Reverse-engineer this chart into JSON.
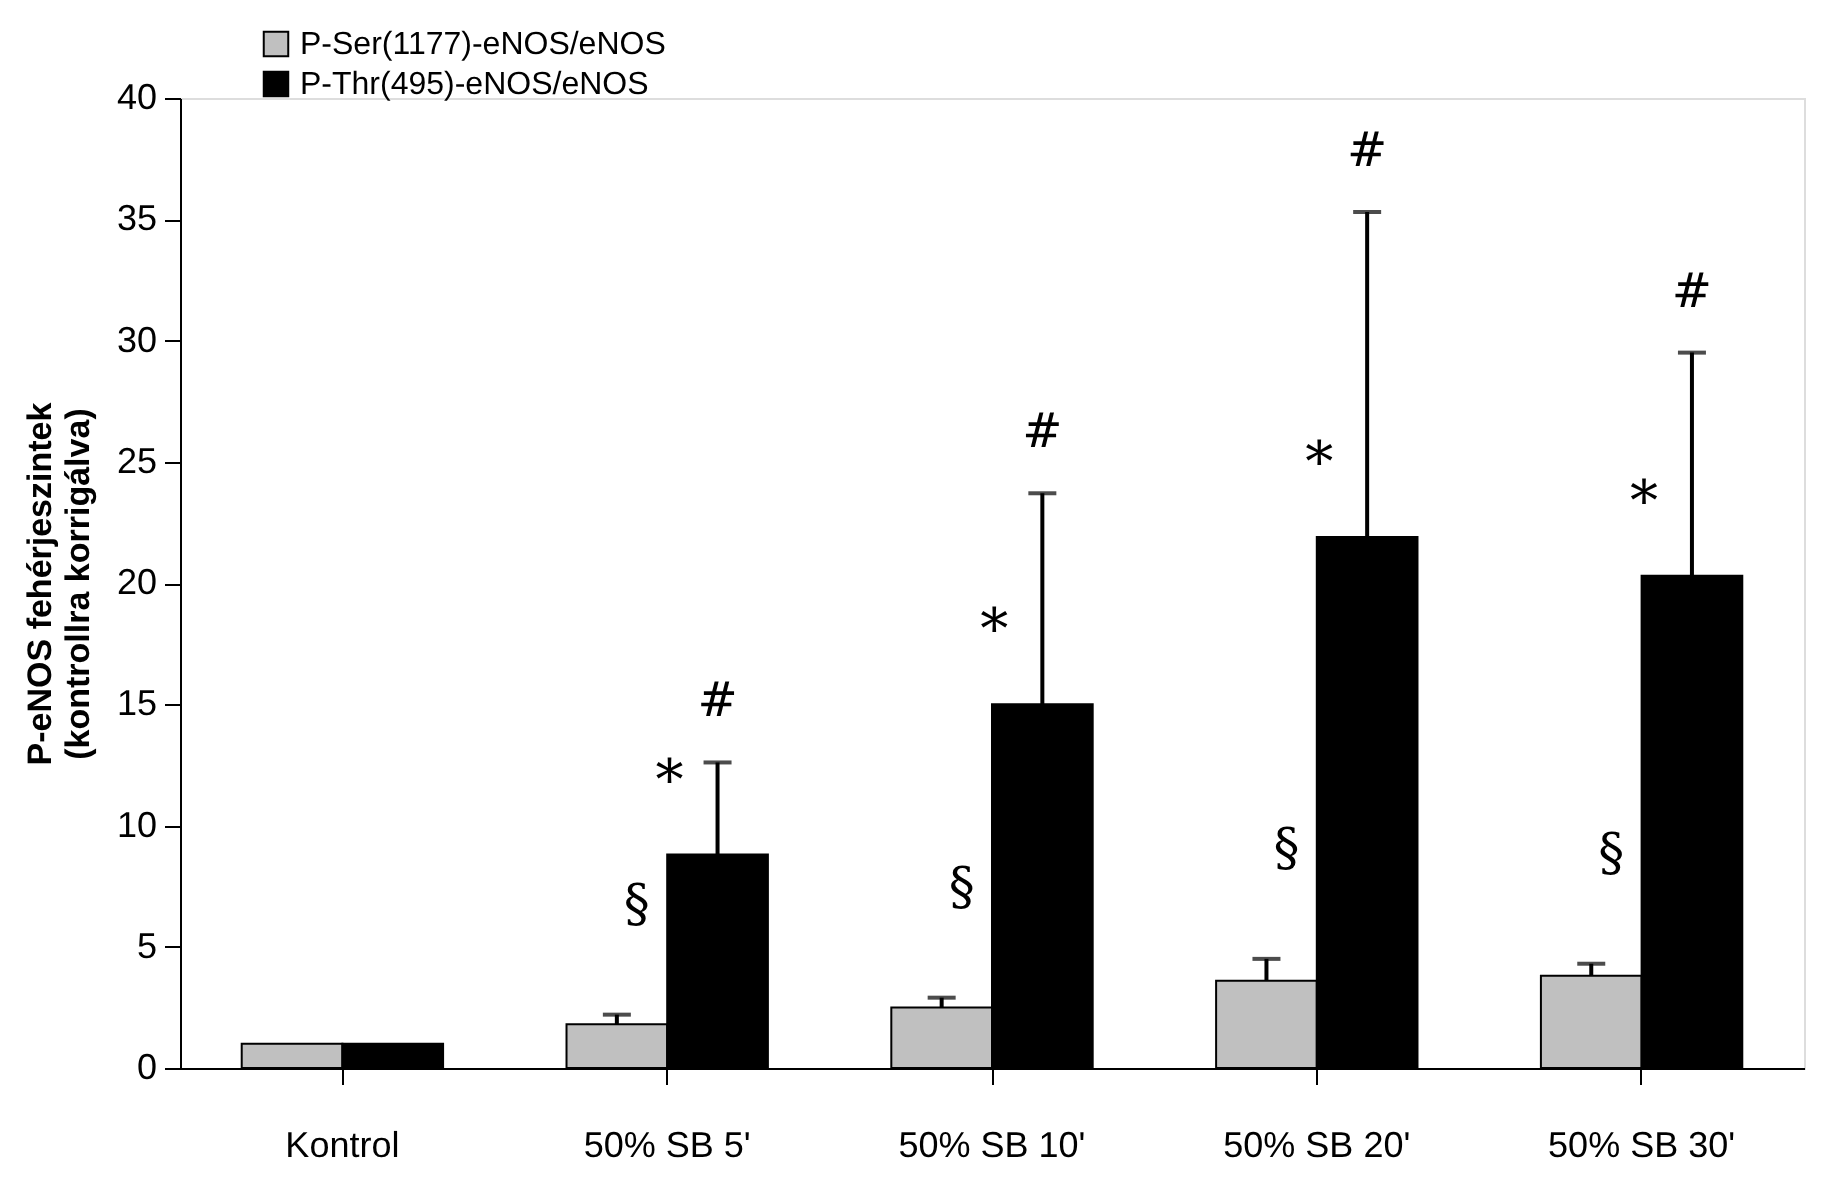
{
  "chart_data": {
    "type": "bar",
    "xlabel": null,
    "ylabel": "P-eNOS fehérjeszintek\n(kontrollra korrigálva)",
    "categories": [
      "Kontrol",
      "50% SB 5'",
      "50% SB 10'",
      "50% SB 20'",
      "50% SB 30'"
    ],
    "series": [
      {
        "name": "P-Ser(1177)-eNOS/eNOS",
        "color": "#c0c0c0",
        "values": [
          1.0,
          1.8,
          2.5,
          3.6,
          3.8
        ],
        "errors": [
          null,
          [
            1.8,
            2.2
          ],
          [
            2.5,
            2.9
          ],
          [
            3.6,
            4.5
          ],
          [
            3.8,
            4.3
          ]
        ]
      },
      {
        "name": "P-Thr(495)-eNOS/eNOS",
        "color": "#000000",
        "values": [
          1.0,
          8.8,
          15.0,
          21.9,
          20.3
        ],
        "errors": [
          null,
          [
            8.8,
            12.6
          ],
          [
            15.0,
            23.7
          ],
          [
            21.9,
            35.3
          ],
          [
            20.3,
            29.5
          ]
        ]
      }
    ],
    "ylim": [
      0,
      40
    ],
    "yticks": [
      0,
      5,
      10,
      15,
      20,
      25,
      30,
      35,
      40
    ],
    "grid": false,
    "legend": "top left",
    "annotations": [
      "§",
      "*",
      "#",
      "§",
      "*",
      "#",
      "§",
      "*",
      "#",
      "§",
      "*",
      "#"
    ]
  }
}
